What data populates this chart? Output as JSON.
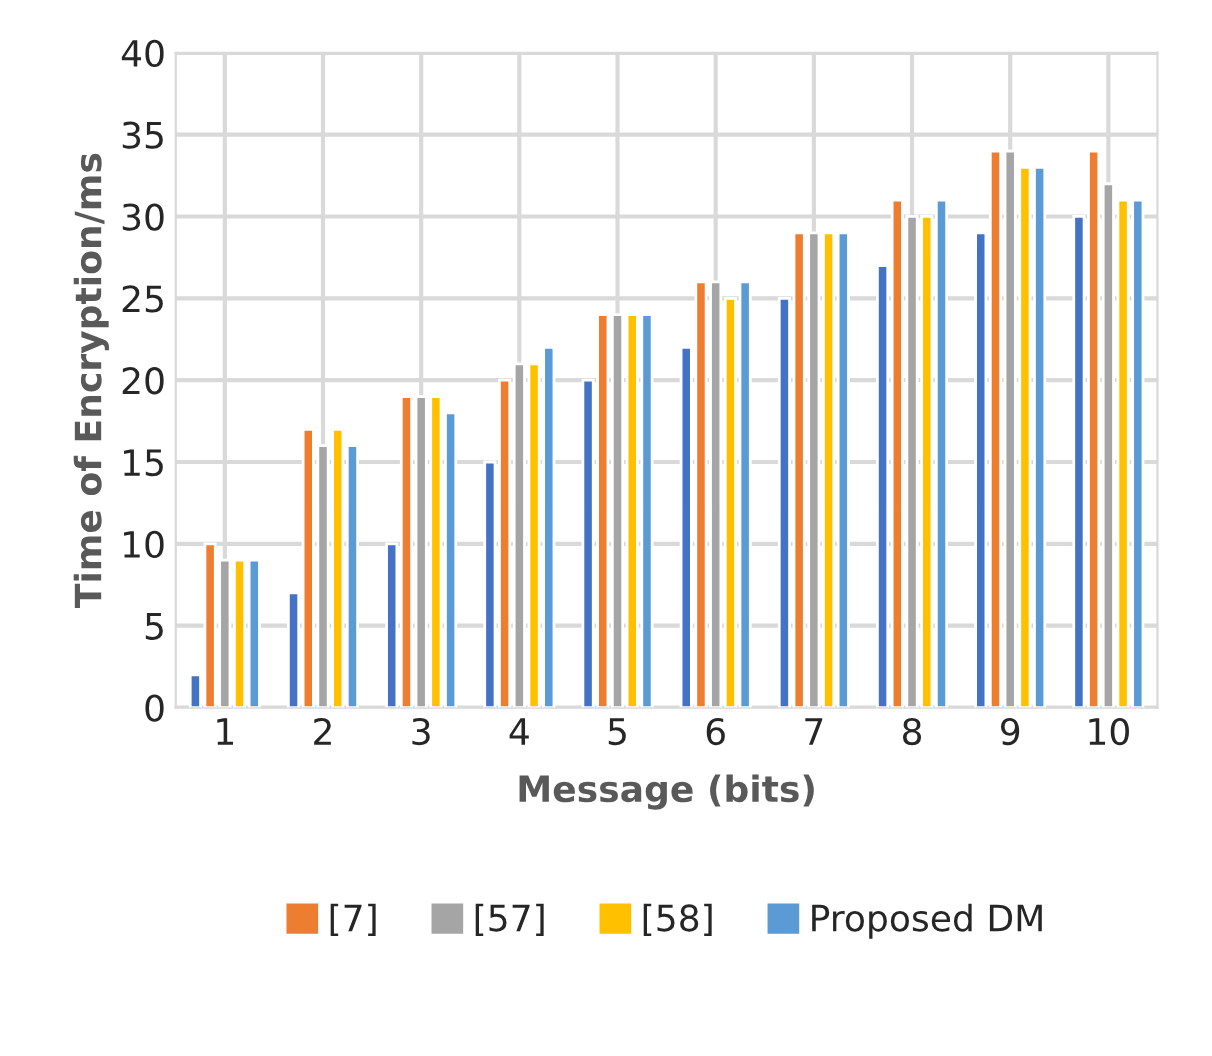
{
  "chart_data": {
    "type": "bar",
    "xlabel": "Message (bits)",
    "ylabel": "Time of Encryption/ms",
    "categories": [
      "1",
      "2",
      "3",
      "4",
      "5",
      "6",
      "7",
      "8",
      "9",
      "10"
    ],
    "series": [
      {
        "color": "#4472c4",
        "values": [
          2,
          7,
          10,
          15,
          20,
          22,
          25,
          27,
          29,
          30
        ]
      },
      {
        "name": "[7]",
        "color": "#ed7d31",
        "values": [
          10,
          17,
          19,
          20,
          24,
          26,
          29,
          31,
          34,
          34
        ]
      },
      {
        "name": "[57]",
        "color": "#a5a5a5",
        "values": [
          9,
          16,
          19,
          21,
          24,
          26,
          29,
          30,
          34,
          32
        ]
      },
      {
        "name": "[58]",
        "color": "#ffc000",
        "values": [
          9,
          17,
          19,
          21,
          24,
          25,
          29,
          30,
          33,
          31
        ]
      },
      {
        "name": "Proposed DM",
        "color": "#5b9bd5",
        "values": [
          9,
          16,
          18,
          22,
          24,
          26,
          29,
          31,
          33,
          31
        ]
      }
    ],
    "ylim": [
      0,
      40
    ],
    "yticks": [
      0,
      5,
      10,
      15,
      20,
      25,
      30,
      35,
      40
    ],
    "grid": true,
    "legend": "bottom"
  }
}
